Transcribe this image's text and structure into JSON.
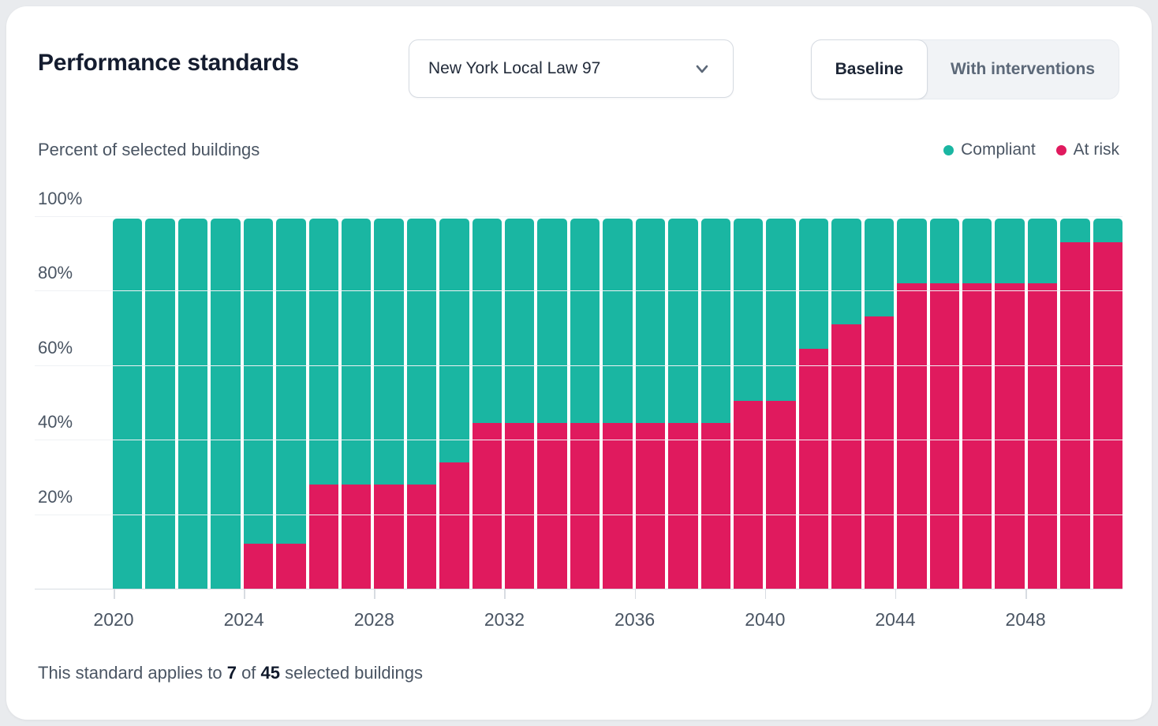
{
  "header": {
    "title": "Performance standards",
    "dropdown_value": "New York Local Law 97",
    "toggle": {
      "baseline": "Baseline",
      "with_interventions": "With interventions",
      "selected": "Baseline"
    }
  },
  "footer": {
    "prefix": "This standard applies to ",
    "count": "7",
    "mid": " of ",
    "total": "45",
    "suffix": " selected buildings"
  },
  "chart_data": {
    "type": "bar",
    "stacked": true,
    "title": "Percent of selected buildings",
    "xlabel": "",
    "ylabel": "Percent of selected buildings",
    "ylim": [
      0,
      100
    ],
    "y_ticks": [
      {
        "value": 100,
        "label": "100%"
      },
      {
        "value": 80,
        "label": "80%"
      },
      {
        "value": 60,
        "label": "60%"
      },
      {
        "value": 40,
        "label": "40%"
      },
      {
        "value": 20,
        "label": "20%"
      }
    ],
    "x_tick_years": [
      2020,
      2024,
      2028,
      2032,
      2036,
      2040,
      2044,
      2048
    ],
    "grid": true,
    "legend_position": "top-right",
    "categories": [
      2020,
      2021,
      2022,
      2023,
      2024,
      2025,
      2026,
      2027,
      2028,
      2029,
      2030,
      2031,
      2032,
      2033,
      2034,
      2035,
      2036,
      2037,
      2038,
      2039,
      2040,
      2041,
      2042,
      2043,
      2044,
      2045,
      2046,
      2047,
      2048,
      2049,
      2050
    ],
    "series": [
      {
        "name": "Compliant",
        "color": "#1ab6a2",
        "values": [
          99.4,
          99.4,
          99.4,
          99.4,
          87.4,
          87.4,
          71.4,
          71.4,
          71.4,
          71.4,
          65.4,
          54.9,
          54.9,
          54.9,
          54.9,
          54.9,
          54.9,
          54.9,
          54.9,
          48.9,
          48.9,
          34.9,
          28.4,
          26.4,
          17.4,
          17.4,
          17.4,
          17.4,
          17.4,
          6.4,
          6.4
        ]
      },
      {
        "name": "At risk",
        "color": "#e01a5e",
        "values": [
          0,
          0,
          0,
          0,
          12,
          12,
          28,
          28,
          28,
          28,
          34,
          44.5,
          44.5,
          44.5,
          44.5,
          44.5,
          44.5,
          44.5,
          44.5,
          50.5,
          50.5,
          64.5,
          71,
          73,
          82,
          82,
          82,
          82,
          82,
          93,
          93
        ]
      }
    ]
  }
}
